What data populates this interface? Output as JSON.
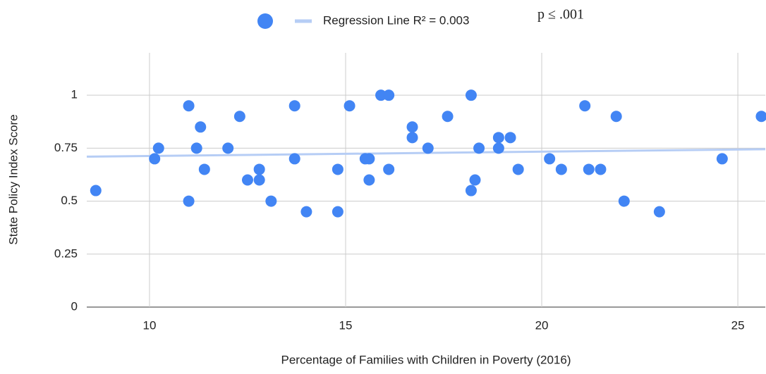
{
  "chart_data": {
    "type": "scatter",
    "xlabel": "Percentage of Families with Children in Poverty (2016)",
    "ylabel": "State Policy Index Score",
    "annotation": "p ≤ .001",
    "xlim": [
      8.4,
      25.7
    ],
    "ylim": [
      0,
      1.2
    ],
    "xticks": [
      10,
      15,
      20,
      25
    ],
    "yticks": [
      0,
      0.25,
      0.5,
      0.75,
      1
    ],
    "grid": true,
    "legend": "top",
    "series": [
      {
        "color": "#4285f4",
        "x": [
          8.63,
          10.13,
          10.23,
          11.0,
          11.0,
          11.2,
          11.3,
          11.4,
          12.0,
          12.3,
          12.5,
          12.8,
          12.8,
          13.1,
          13.7,
          13.7,
          14.0,
          14.8,
          14.8,
          15.1,
          15.5,
          15.6,
          15.6,
          15.9,
          16.1,
          16.1,
          16.7,
          16.7,
          17.1,
          17.6,
          18.2,
          18.2,
          18.3,
          18.4,
          18.9,
          18.9,
          19.2,
          19.4,
          20.2,
          20.5,
          21.1,
          21.2,
          21.5,
          21.9,
          22.1,
          23.0,
          24.6,
          25.6
        ],
        "values": [
          0.55,
          0.7,
          0.75,
          0.95,
          0.5,
          0.75,
          0.85,
          0.65,
          0.75,
          0.9,
          0.6,
          0.65,
          0.6,
          0.5,
          0.95,
          0.7,
          0.45,
          0.65,
          0.45,
          0.95,
          0.7,
          0.7,
          0.6,
          1,
          1,
          0.65,
          0.85,
          0.8,
          0.75,
          0.9,
          1,
          0.55,
          0.6,
          0.75,
          0.8,
          0.75,
          0.8,
          0.65,
          0.7,
          0.65,
          0.95,
          0.65,
          0.65,
          0.9,
          0.5,
          0.45,
          0.7,
          0.9
        ]
      }
    ],
    "trendline": {
      "name": "Regression Line R² = 0.003",
      "color": "#b6cdf5",
      "x": [
        8.4,
        25.7
      ],
      "values": [
        0.71,
        0.745
      ]
    }
  }
}
